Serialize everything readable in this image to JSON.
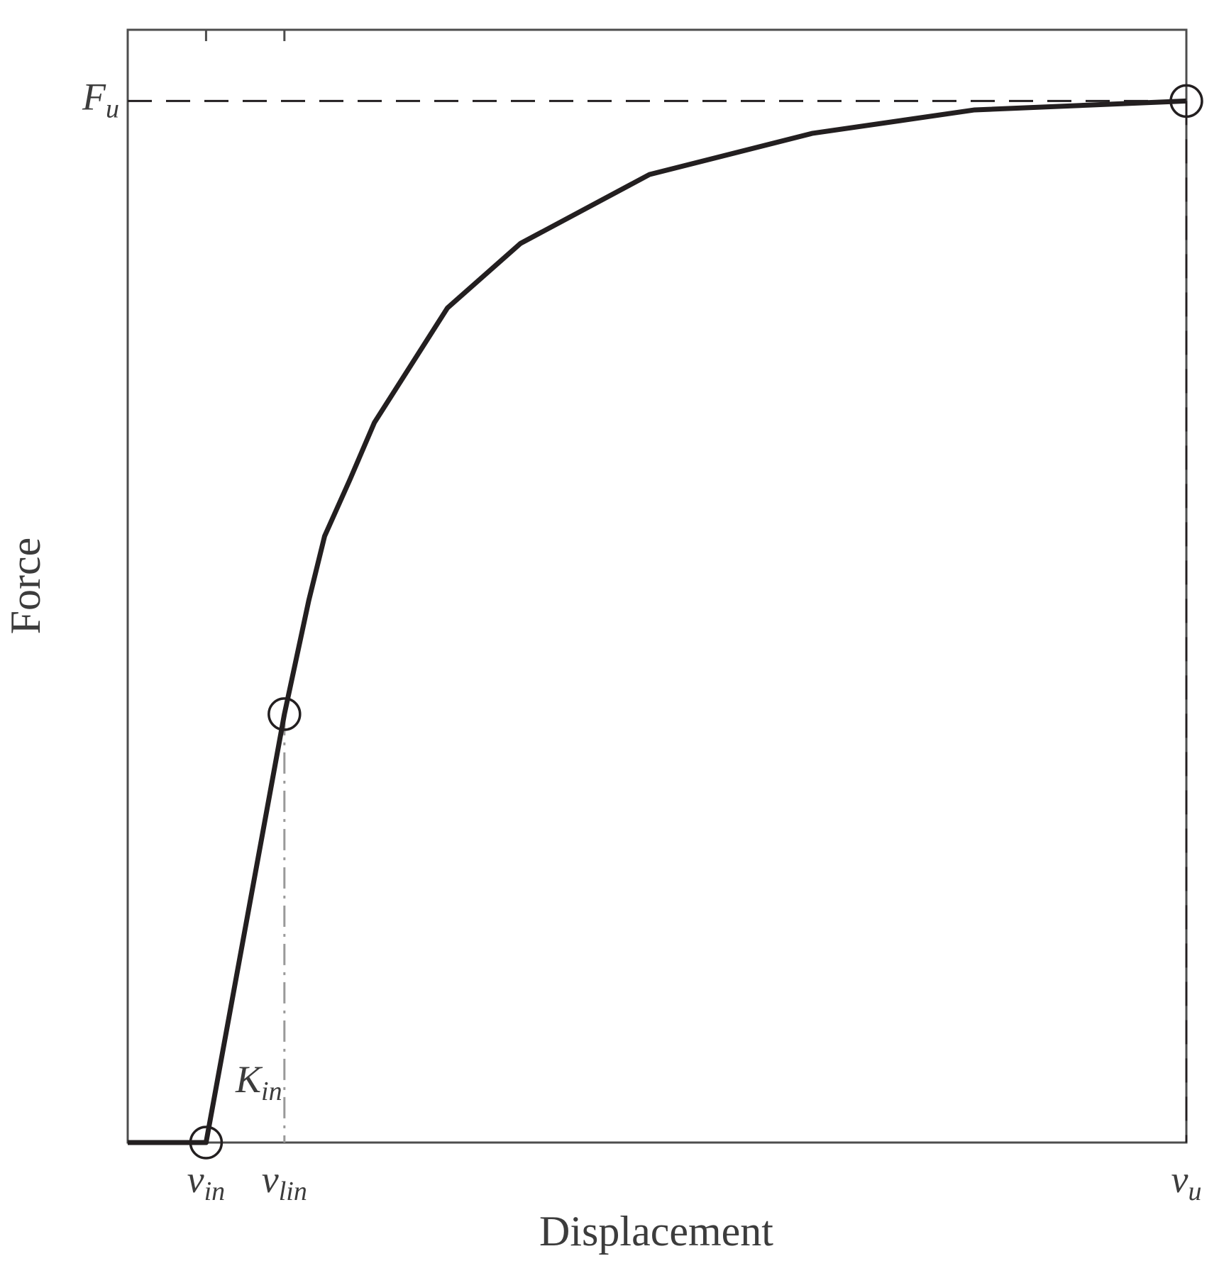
{
  "chart_data": {
    "type": "line",
    "xlabel": "Displacement",
    "ylabel": "Force",
    "xlim": [
      0,
      100
    ],
    "ylim": [
      0,
      100
    ],
    "xticks": [
      {
        "value": 7.4,
        "label": "v",
        "subscript": "in"
      },
      {
        "value": 14.8,
        "label": "v",
        "subscript": "lin"
      },
      {
        "value": 100,
        "label": "v",
        "subscript": "u"
      }
    ],
    "yticks": [
      {
        "value": 93.6,
        "label": "F",
        "subscript": "u"
      }
    ],
    "annotation": {
      "label": "K",
      "subscript": "in"
    },
    "grid": false,
    "series": [
      {
        "color": "#231f20",
        "x": [
          0,
          7.4,
          14.8,
          17.1,
          18.6,
          21.0,
          23.3,
          30.2,
          37.1,
          49.3,
          64.7,
          80.0,
          100
        ],
        "values": [
          0,
          0,
          38.5,
          48.7,
          54.5,
          59.6,
          64.7,
          75.0,
          80.8,
          87.0,
          90.7,
          92.8,
          93.6
        ]
      },
      {
        "color": "#231f20",
        "marker": "circle",
        "x": [
          7.4,
          14.8,
          100
        ],
        "values": [
          0,
          38.5,
          93.6
        ]
      }
    ]
  }
}
